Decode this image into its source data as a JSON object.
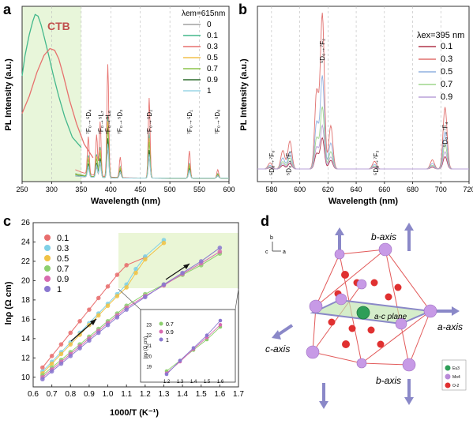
{
  "chart_data": [
    {
      "panel_label": "a",
      "type": "line",
      "xlabel": "Wavelength (nm)",
      "ylabel": "PL Intensity (a.u.)",
      "xlim": [
        250,
        600
      ],
      "xticks": [
        "250",
        "300",
        "350",
        "400",
        "450",
        "500",
        "550",
        "600"
      ],
      "annotation_ctb": "CTB",
      "legend_title": "λem=615nm",
      "series": [
        {
          "name": "0",
          "color": "#a0a0a0"
        },
        {
          "name": "0.1",
          "color": "#44b88c"
        },
        {
          "name": "0.3",
          "color": "#e7716e"
        },
        {
          "name": "0.5",
          "color": "#f2c14b"
        },
        {
          "name": "0.7",
          "color": "#8bc34a"
        },
        {
          "name": "0.9",
          "color": "#2f6b2f"
        },
        {
          "name": "1",
          "color": "#9ad6e6"
        }
      ],
      "ctb_peaks": [
        {
          "name": "0.1",
          "x": [
            250,
            255,
            262,
            268,
            272,
            277,
            282,
            288,
            295,
            303,
            312,
            322,
            335,
            350
          ],
          "y": [
            0.62,
            0.74,
            0.86,
            0.94,
            0.98,
            0.97,
            0.92,
            0.84,
            0.74,
            0.62,
            0.5,
            0.38,
            0.26,
            0.2
          ]
        },
        {
          "name": "0.3",
          "x": [
            250,
            262,
            275,
            287,
            297,
            305,
            312,
            320,
            330,
            342,
            355,
            370
          ],
          "y": [
            0.4,
            0.5,
            0.64,
            0.74,
            0.78,
            0.77,
            0.72,
            0.62,
            0.48,
            0.34,
            0.22,
            0.14
          ]
        }
      ],
      "peak_labels": [
        {
          "text": "⁷F₀→⁵D₄",
          "x": 362
        },
        {
          "text": "⁷F₀→⁵L₇",
          "x": 383
        },
        {
          "text": "⁷F₀→⁵L₆",
          "x": 395
        },
        {
          "text": "⁷F₀→⁵D₃",
          "x": 415
        },
        {
          "text": "⁷F₀→⁵D₂",
          "x": 465
        },
        {
          "text": "⁷F₀→⁵D₁",
          "x": 533
        },
        {
          "text": "⁷F₀→⁵D₀",
          "x": 580
        }
      ],
      "peaks": [
        {
          "x": 362,
          "h": 0.22
        },
        {
          "x": 376,
          "h": 0.24
        },
        {
          "x": 382,
          "h": 0.32
        },
        {
          "x": 395,
          "h": 0.66
        },
        {
          "x": 416,
          "h": 0.12
        },
        {
          "x": 465,
          "h": 0.47
        },
        {
          "x": 533,
          "h": 0.16
        },
        {
          "x": 581,
          "h": 0.05
        }
      ]
    },
    {
      "panel_label": "b",
      "type": "line",
      "xlabel": "Wavelength (nm)",
      "ylabel": "PL Intensity (a.u.)",
      "xlim": [
        570,
        720
      ],
      "xticks": [
        "580",
        "600",
        "620",
        "640",
        "660",
        "680",
        "700",
        "720"
      ],
      "legend_title": "λex=395 nm",
      "series": [
        {
          "name": "0.1",
          "color": "#b0354a"
        },
        {
          "name": "0.3",
          "color": "#e0706e"
        },
        {
          "name": "0.5",
          "color": "#8fb0e0"
        },
        {
          "name": "0.7",
          "color": "#9ed68c"
        },
        {
          "name": "0.9",
          "color": "#b8a0d8"
        }
      ],
      "peak_labels": [
        {
          "text": "⁵D₀→⁷F₀",
          "x": 580
        },
        {
          "text": "⁵D₀→⁷F₁",
          "x": 592
        },
        {
          "text": "⁵D₀→⁷F₂",
          "x": 616
        },
        {
          "text": "⁵D₀→⁷F₃",
          "x": 654
        },
        {
          "text": "⁵D₀→⁷F₄",
          "x": 703
        }
      ],
      "peaks": [
        {
          "x": 579,
          "h": 0.04
        },
        {
          "x": 588,
          "h": 0.12
        },
        {
          "x": 593,
          "h": 0.18
        },
        {
          "x": 612,
          "h": 0.5
        },
        {
          "x": 616,
          "h": 1.0
        },
        {
          "x": 622,
          "h": 0.28
        },
        {
          "x": 653,
          "h": 0.05
        },
        {
          "x": 694,
          "h": 0.06
        },
        {
          "x": 703,
          "h": 0.4
        }
      ]
    },
    {
      "panel_label": "c",
      "type": "scatter",
      "xlabel": "1000/T (K⁻¹)",
      "ylabel": "lnρ (Ω cm)",
      "xlim": [
        0.6,
        1.7
      ],
      "ylim": [
        9,
        26
      ],
      "xticks": [
        "0.6",
        "0.7",
        "0.8",
        "0.9",
        "1.0",
        "1.1",
        "1.2",
        "1.3",
        "1.4",
        "1.5",
        "1.6",
        "1.7"
      ],
      "yticks": [
        "10",
        "12",
        "14",
        "16",
        "18",
        "20",
        "22",
        "24",
        "26"
      ],
      "series": [
        {
          "name": "0.1",
          "color": "#e86d6d",
          "x": [
            0.65,
            0.7,
            0.75,
            0.8,
            0.85,
            0.9,
            0.95,
            1.0,
            1.05,
            1.1,
            1.2
          ],
          "y": [
            11.0,
            12.2,
            13.4,
            14.6,
            15.8,
            17.0,
            18.2,
            19.4,
            20.6,
            21.6,
            22.4
          ]
        },
        {
          "name": "0.3",
          "color": "#7fd0e6",
          "x": [
            0.65,
            0.7,
            0.75,
            0.8,
            0.85,
            0.9,
            0.95,
            1.0,
            1.05,
            1.1,
            1.15,
            1.2,
            1.3
          ],
          "y": [
            10.6,
            11.6,
            12.6,
            13.6,
            14.6,
            15.6,
            16.6,
            17.6,
            18.6,
            19.6,
            21.2,
            22.5,
            24.2
          ]
        },
        {
          "name": "0.5",
          "color": "#f0c246",
          "x": [
            0.65,
            0.7,
            0.75,
            0.8,
            0.85,
            0.9,
            0.95,
            1.0,
            1.05,
            1.1,
            1.15,
            1.2,
            1.3
          ],
          "y": [
            10.4,
            11.4,
            12.4,
            13.4,
            14.4,
            15.4,
            16.4,
            17.4,
            18.4,
            19.3,
            20.8,
            22.2,
            23.9
          ]
        },
        {
          "name": "0.7",
          "color": "#8ccf6e",
          "x": [
            0.65,
            0.7,
            0.75,
            0.8,
            0.85,
            0.9,
            0.95,
            1.0,
            1.05,
            1.1,
            1.2,
            1.3,
            1.4,
            1.5,
            1.6
          ],
          "y": [
            10.2,
            11.0,
            11.8,
            12.6,
            13.4,
            14.2,
            15.0,
            15.8,
            16.6,
            17.4,
            18.6,
            19.6,
            20.6,
            21.6,
            22.8
          ]
        },
        {
          "name": "0.9",
          "color": "#d86bb0",
          "x": [
            0.65,
            0.7,
            0.75,
            0.8,
            0.85,
            0.9,
            0.95,
            1.0,
            1.05,
            1.1,
            1.2,
            1.3,
            1.4,
            1.5,
            1.6
          ],
          "y": [
            10.0,
            10.8,
            11.6,
            12.4,
            13.2,
            14.0,
            14.8,
            15.6,
            16.4,
            17.2,
            18.4,
            19.5,
            20.7,
            21.8,
            23.0
          ]
        },
        {
          "name": "1",
          "color": "#8a78d0",
          "x": [
            0.65,
            0.7,
            0.75,
            0.8,
            0.85,
            0.9,
            0.95,
            1.0,
            1.05,
            1.1,
            1.2,
            1.3,
            1.4,
            1.5,
            1.6
          ],
          "y": [
            9.8,
            10.6,
            11.4,
            12.2,
            13.0,
            13.8,
            14.6,
            15.4,
            16.2,
            17.0,
            18.3,
            19.6,
            20.8,
            22.0,
            23.4
          ]
        }
      ],
      "inset": {
        "xlim": [
          1.1,
          1.7
        ],
        "ylim": [
          18,
          24
        ],
        "xticks": [
          "1.2",
          "1.3",
          "1.4",
          "1.5",
          "1.6"
        ],
        "yticks": [
          "19",
          "20",
          "21",
          "22",
          "23"
        ],
        "ylabel": "lnρ (Ω cm)",
        "series": [
          {
            "name": "0.7",
            "color": "#8ccf6e",
            "x": [
              1.2,
              1.3,
              1.4,
              1.5,
              1.6
            ],
            "y": [
              18.6,
              19.6,
              20.6,
              21.6,
              22.8
            ]
          },
          {
            "name": "0.9",
            "color": "#d86bb0",
            "x": [
              1.2,
              1.3,
              1.4,
              1.5,
              1.6
            ],
            "y": [
              18.4,
              19.5,
              20.7,
              21.8,
              23.0
            ]
          },
          {
            "name": "1",
            "color": "#8a78d0",
            "x": [
              1.2,
              1.3,
              1.4,
              1.5,
              1.6
            ],
            "y": [
              18.3,
              19.6,
              20.8,
              22.0,
              23.4
            ]
          }
        ]
      }
    }
  ],
  "panel_d": {
    "label": "d",
    "axes_labels": {
      "b": "b",
      "c": "c",
      "a": "a"
    },
    "texts": {
      "b_axis_top": "b-axis",
      "b_axis_bottom": "b-axis",
      "a_axis": "a-axis",
      "c_axis": "c-axis",
      "plane": "a-c plane"
    },
    "legend": [
      {
        "label": "Eu3",
        "color": "#2e9e58"
      },
      {
        "label": "Mo4",
        "color": "#b98ad8"
      },
      {
        "label": "O-2",
        "color": "#e03030"
      }
    ]
  },
  "colors": {
    "panel_a_bg": "#e8f6da",
    "panel_c_bg": "#eaf6d6",
    "ctb_text": "#c0504d"
  }
}
